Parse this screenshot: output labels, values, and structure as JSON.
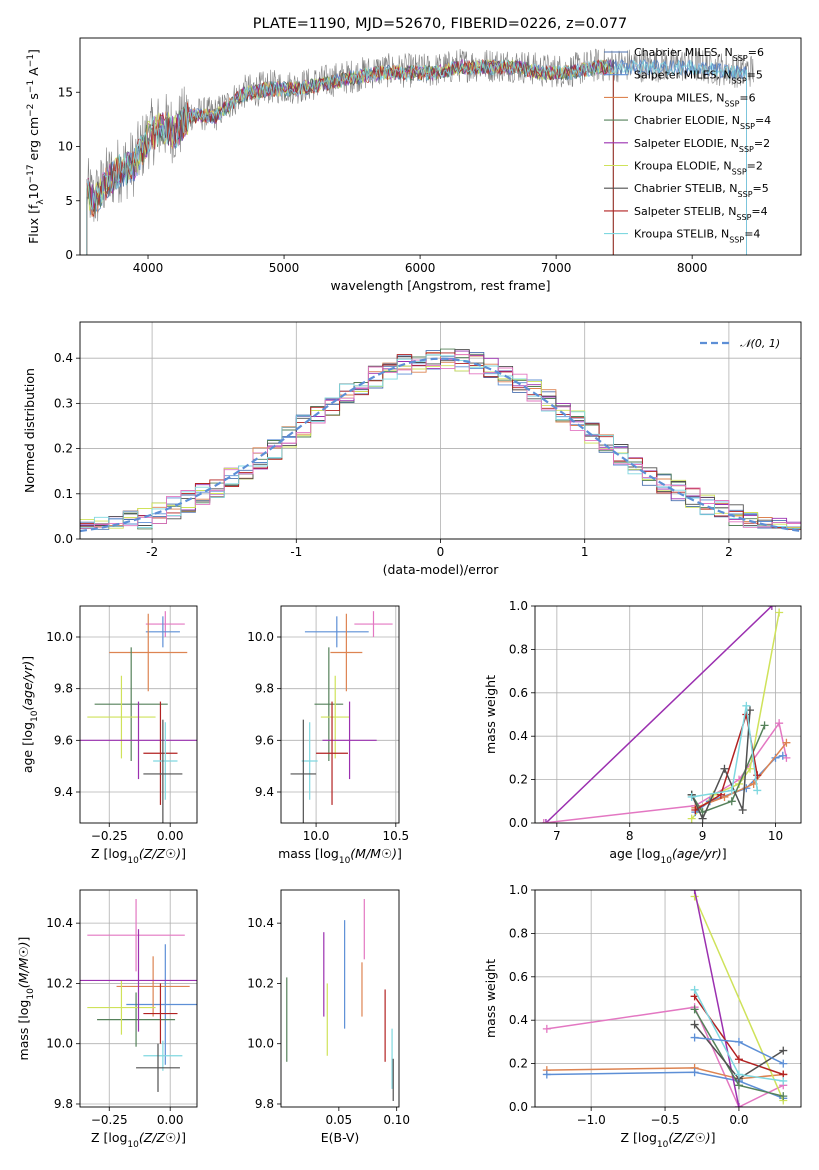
{
  "figure": {
    "title": "PLATE=1190, MJD=52670, FIBERID=0226, z=0.077"
  },
  "colors": {
    "axis": "#000000",
    "grid": "#b0b0b0"
  },
  "chart_data": [
    {
      "id": "spectrum",
      "type": "line",
      "title": "PLATE=1190, MJD=52670, FIBERID=0226, z=0.077",
      "xlabel": "wavelength [Angstrom, rest frame]",
      "ylabel": "Flux [f_λ 10^-17 erg cm^-2 s^-1 A^-1]",
      "xlim": [
        3500,
        8800
      ],
      "ylim": [
        0,
        20
      ],
      "xticks": [
        4000,
        5000,
        6000,
        7000,
        8000
      ],
      "yticks": [
        0,
        5,
        10,
        15
      ],
      "grid": false,
      "legend_position": "upper-right",
      "data_color": "#808080",
      "data_x": [
        3550,
        3600,
        3700,
        3800,
        3900,
        4000,
        4100,
        4200,
        4300,
        4500,
        4700,
        4900,
        5100,
        5300,
        5500,
        5700,
        5900,
        6100,
        6300,
        6500,
        6700,
        6900,
        7100,
        7300,
        7500,
        7700,
        8000,
        8300,
        8450
      ],
      "data_y": [
        6,
        5,
        7,
        8,
        8.5,
        11,
        12,
        11.5,
        13,
        13,
        15,
        15.5,
        15.5,
        16,
        16.5,
        17,
        17,
        17,
        17.5,
        17.5,
        17.5,
        17,
        17,
        17.5,
        17.5,
        17.5,
        17.5,
        17,
        17
      ],
      "series": [
        {
          "name": "Chabrier MILES, N_SSP=6",
          "name_main": "Chabrier MILES, N",
          "name_sub": "SSP",
          "name_suffix": "=6",
          "color": "#4c72b0",
          "xrange": [
            3550,
            8400
          ]
        },
        {
          "name": "Salpeter MILES, N_SSP=5",
          "name_main": "Salpeter MILES, N",
          "name_sub": "SSP",
          "name_suffix": "=5",
          "color": "#5d8fd6",
          "xrange": [
            3550,
            8400
          ]
        },
        {
          "name": "Kroupa MILES, N_SSP=6",
          "name_main": "Kroupa MILES, N",
          "name_sub": "SSP",
          "name_suffix": "=6",
          "color": "#dd8452",
          "xrange": [
            3550,
            7420
          ]
        },
        {
          "name": "Chabrier ELODIE, N_SSP=4",
          "name_main": "Chabrier ELODIE, N",
          "name_sub": "SSP",
          "name_suffix": "=4",
          "color": "#55815a",
          "xrange": [
            3550,
            7420
          ]
        },
        {
          "name": "Salpeter ELODIE, N_SSP=2",
          "name_main": "Salpeter ELODIE, N",
          "name_sub": "SSP",
          "name_suffix": "=2",
          "color": "#9b30b0",
          "xrange": [
            3550,
            7420
          ]
        },
        {
          "name": "Kroupa ELODIE, N_SSP=2",
          "name_main": "Kroupa ELODIE, N",
          "name_sub": "SSP",
          "name_suffix": "=2",
          "color": "#cfe25a",
          "xrange": [
            3550,
            7420
          ]
        },
        {
          "name": "Chabrier STELIB, N_SSP=5",
          "name_main": "Chabrier STELIB, N",
          "name_sub": "SSP",
          "name_suffix": "=5",
          "color": "#505050",
          "xrange": [
            3550,
            7420
          ]
        },
        {
          "name": "Salpeter STELIB, N_SSP=4",
          "name_main": "Salpeter STELIB, N",
          "name_sub": "SSP",
          "name_suffix": "=4",
          "color": "#b22222",
          "xrange": [
            3550,
            7420
          ]
        },
        {
          "name": "Kroupa STELIB, N_SSP=4",
          "name_main": "Kroupa STELIB, N",
          "name_sub": "SSP",
          "name_suffix": "=4",
          "color": "#7fd8e0",
          "xrange": [
            3550,
            8400
          ]
        }
      ]
    },
    {
      "id": "residuals",
      "type": "step",
      "xlabel": "(data-model)/error",
      "ylabel": "Normed distribution",
      "xlim": [
        -2.5,
        2.5
      ],
      "ylim": [
        0,
        0.48
      ],
      "xticks": [
        -2,
        -1,
        0,
        1,
        2
      ],
      "yticks": [
        0.0,
        0.1,
        0.2,
        0.3,
        0.4
      ],
      "grid": true,
      "bin_width": 0.1,
      "legend_position": "upper-right",
      "reference_curve": {
        "name": "𝒩(0, 1)",
        "mean": 0,
        "sigma": 1,
        "color": "#5d8fd6",
        "style": "dashed"
      },
      "series_colors": [
        "#4c72b0",
        "#5d8fd6",
        "#dd8452",
        "#55815a",
        "#9b30b0",
        "#cfe25a",
        "#505050",
        "#b22222",
        "#7fd8e0",
        "#e377c2"
      ]
    },
    {
      "id": "age_vs_Z",
      "type": "errorbar",
      "xlabel": "Z [log10(Z/Z☉)]",
      "ylabel": "age [log10(age/yr)]",
      "xlim": [
        -0.37,
        0.11
      ],
      "ylim": [
        9.28,
        10.12
      ],
      "xticks": [
        -0.25,
        0.0
      ],
      "xticklabels": [
        "−0.25",
        "0.00"
      ],
      "yticks": [
        9.4,
        9.6,
        9.8,
        10.0
      ],
      "grid": true,
      "points": [
        {
          "x": -0.02,
          "xerr": 0.08,
          "y": 10.05,
          "yerr": 0.05,
          "color": "#e377c2"
        },
        {
          "x": -0.03,
          "xerr": 0.07,
          "y": 10.02,
          "yerr": 0.06,
          "color": "#5d8fd6"
        },
        {
          "x": -0.09,
          "xerr": 0.16,
          "y": 9.94,
          "yerr": 0.15,
          "color": "#dd8452"
        },
        {
          "x": -0.16,
          "xerr": 0.15,
          "y": 9.74,
          "yerr": 0.22,
          "color": "#55815a"
        },
        {
          "x": -0.2,
          "xerr": 0.14,
          "y": 9.69,
          "yerr": 0.16,
          "color": "#cfe25a"
        },
        {
          "x": -0.13,
          "xerr": 0.46,
          "y": 9.6,
          "yerr": 0.15,
          "color": "#9b30b0"
        },
        {
          "x": -0.04,
          "xerr": 0.07,
          "y": 9.55,
          "yerr": 0.2,
          "color": "#b22222"
        },
        {
          "x": -0.02,
          "xerr": 0.05,
          "y": 9.52,
          "yerr": 0.15,
          "color": "#7fd8e0"
        },
        {
          "x": -0.03,
          "xerr": 0.08,
          "y": 9.47,
          "yerr": 0.21,
          "color": "#505050"
        }
      ]
    },
    {
      "id": "age_vs_mass",
      "type": "errorbar",
      "xlabel": "mass [log10(M/M☉)]",
      "ylabel": "",
      "xlim": [
        9.78,
        10.52
      ],
      "ylim": [
        9.28,
        10.12
      ],
      "xticks": [
        10.0,
        10.5
      ],
      "xticklabels": [
        "10.0",
        "10.5"
      ],
      "yticks": [
        9.4,
        9.6,
        9.8,
        10.0
      ],
      "grid": true,
      "points": [
        {
          "x": 10.36,
          "xerr": 0.12,
          "y": 10.05,
          "yerr": 0.05,
          "color": "#e377c2"
        },
        {
          "x": 10.13,
          "xerr": 0.2,
          "y": 10.02,
          "yerr": 0.06,
          "color": "#5d8fd6"
        },
        {
          "x": 10.19,
          "xerr": 0.1,
          "y": 9.94,
          "yerr": 0.15,
          "color": "#dd8452"
        },
        {
          "x": 10.08,
          "xerr": 0.09,
          "y": 9.74,
          "yerr": 0.22,
          "color": "#55815a"
        },
        {
          "x": 10.12,
          "xerr": 0.09,
          "y": 9.69,
          "yerr": 0.16,
          "color": "#cfe25a"
        },
        {
          "x": 10.21,
          "xerr": 0.17,
          "y": 9.6,
          "yerr": 0.15,
          "color": "#9b30b0"
        },
        {
          "x": 10.1,
          "xerr": 0.1,
          "y": 9.55,
          "yerr": 0.2,
          "color": "#b22222"
        },
        {
          "x": 9.96,
          "xerr": 0.05,
          "y": 9.52,
          "yerr": 0.15,
          "color": "#7fd8e0"
        },
        {
          "x": 9.92,
          "xerr": 0.08,
          "y": 9.47,
          "yerr": 0.21,
          "color": "#505050"
        }
      ]
    },
    {
      "id": "mw_vs_age",
      "type": "line",
      "xlabel": "age [log10(age/yr)]",
      "ylabel": "mass weight",
      "xlim": [
        6.7,
        10.35
      ],
      "ylim": [
        0,
        1
      ],
      "xticks": [
        7,
        8,
        9,
        10
      ],
      "yticks": [
        0.0,
        0.2,
        0.4,
        0.6,
        0.8,
        1.0
      ],
      "grid": true,
      "series": [
        {
          "color": "#9b30b0",
          "points": [
            [
              6.85,
              0.0
            ],
            [
              9.95,
              1.0
            ]
          ]
        },
        {
          "color": "#e377c2",
          "points": [
            [
              6.82,
              0.0
            ],
            [
              8.9,
              0.08
            ],
            [
              9.5,
              0.2
            ],
            [
              10.05,
              0.46
            ],
            [
              10.15,
              0.3
            ]
          ]
        },
        {
          "color": "#cfe25a",
          "points": [
            [
              8.85,
              0.02
            ],
            [
              9.15,
              0.13
            ],
            [
              9.5,
              0.18
            ],
            [
              9.65,
              0.25
            ],
            [
              10.05,
              0.97
            ]
          ]
        },
        {
          "color": "#5d8fd6",
          "points": [
            [
              8.9,
              0.05
            ],
            [
              9.1,
              0.1
            ],
            [
              9.6,
              0.16
            ],
            [
              10.0,
              0.3
            ],
            [
              10.1,
              0.31
            ]
          ]
        },
        {
          "color": "#dd8452",
          "points": [
            [
              8.9,
              0.07
            ],
            [
              9.3,
              0.12
            ],
            [
              9.7,
              0.18
            ],
            [
              10.15,
              0.37
            ]
          ]
        },
        {
          "color": "#55815a",
          "points": [
            [
              8.85,
              0.13
            ],
            [
              9.0,
              0.05
            ],
            [
              9.4,
              0.1
            ],
            [
              9.85,
              0.45
            ]
          ]
        },
        {
          "color": "#b22222",
          "points": [
            [
              8.9,
              0.06
            ],
            [
              9.25,
              0.13
            ],
            [
              9.6,
              0.5
            ],
            [
              9.75,
              0.22
            ]
          ]
        },
        {
          "color": "#505050",
          "points": [
            [
              8.85,
              0.13
            ],
            [
              9.0,
              0.02
            ],
            [
              9.3,
              0.25
            ],
            [
              9.55,
              0.06
            ],
            [
              9.65,
              0.52
            ]
          ]
        },
        {
          "color": "#7fd8e0",
          "points": [
            [
              8.85,
              0.12
            ],
            [
              9.4,
              0.15
            ],
            [
              9.6,
              0.54
            ],
            [
              9.75,
              0.15
            ]
          ]
        }
      ]
    },
    {
      "id": "mass_vs_Z",
      "type": "errorbar",
      "xlabel": "Z [log10(Z/Z☉)]",
      "ylabel": "mass [log10(M/M☉)]",
      "xlim": [
        -0.37,
        0.11
      ],
      "ylim": [
        9.79,
        10.51
      ],
      "xticks": [
        -0.25,
        0.0
      ],
      "xticklabels": [
        "−0.25",
        "0.00"
      ],
      "yticks": [
        9.8,
        10.0,
        10.2,
        10.4
      ],
      "grid": true,
      "points": [
        {
          "x": -0.14,
          "xerr": 0.2,
          "y": 10.36,
          "yerr": 0.12,
          "color": "#e377c2"
        },
        {
          "x": -0.02,
          "xerr": 0.16,
          "y": 10.13,
          "yerr": 0.2,
          "color": "#5d8fd6"
        },
        {
          "x": -0.07,
          "xerr": 0.15,
          "y": 10.19,
          "yerr": 0.1,
          "color": "#dd8452"
        },
        {
          "x": -0.14,
          "xerr": 0.16,
          "y": 10.08,
          "yerr": 0.09,
          "color": "#55815a"
        },
        {
          "x": -0.2,
          "xerr": 0.14,
          "y": 10.12,
          "yerr": 0.09,
          "color": "#cfe25a"
        },
        {
          "x": -0.13,
          "xerr": 0.46,
          "y": 10.21,
          "yerr": 0.17,
          "color": "#9b30b0"
        },
        {
          "x": -0.04,
          "xerr": 0.07,
          "y": 10.1,
          "yerr": 0.1,
          "color": "#b22222"
        },
        {
          "x": -0.03,
          "xerr": 0.08,
          "y": 9.96,
          "yerr": 0.05,
          "color": "#7fd8e0"
        },
        {
          "x": -0.05,
          "xerr": 0.09,
          "y": 9.92,
          "yerr": 0.08,
          "color": "#505050"
        }
      ]
    },
    {
      "id": "mass_vs_ebv",
      "type": "errorbar",
      "xlabel": "E(B-V)",
      "ylabel": "",
      "xlim": [
        0.0,
        0.102
      ],
      "ylim": [
        9.79,
        10.51
      ],
      "xticks": [
        0.05,
        0.1
      ],
      "xticklabels": [
        "0.05",
        "0.10"
      ],
      "yticks": [
        9.8,
        10.0,
        10.2,
        10.4
      ],
      "grid": false,
      "points": [
        {
          "x": 0.005,
          "xerr": 0,
          "y": 10.08,
          "yerr": 0.14,
          "color": "#55815a"
        },
        {
          "x": 0.037,
          "xerr": 0,
          "y": 10.23,
          "yerr": 0.14,
          "color": "#9b30b0"
        },
        {
          "x": 0.04,
          "xerr": 0,
          "y": 10.08,
          "yerr": 0.12,
          "color": "#cfe25a"
        },
        {
          "x": 0.055,
          "xerr": 0,
          "y": 10.23,
          "yerr": 0.18,
          "color": "#5d8fd6"
        },
        {
          "x": 0.07,
          "xerr": 0,
          "y": 10.18,
          "yerr": 0.09,
          "color": "#dd8452"
        },
        {
          "x": 0.072,
          "xerr": 0,
          "y": 10.38,
          "yerr": 0.1,
          "color": "#e377c2"
        },
        {
          "x": 0.09,
          "xerr": 0,
          "y": 10.06,
          "yerr": 0.12,
          "color": "#b22222"
        },
        {
          "x": 0.096,
          "xerr": 0,
          "y": 9.95,
          "yerr": 0.1,
          "color": "#7fd8e0"
        },
        {
          "x": 0.097,
          "xerr": 0,
          "y": 9.88,
          "yerr": 0.07,
          "color": "#505050"
        }
      ]
    },
    {
      "id": "mw_vs_Z",
      "type": "line",
      "xlabel": "Z [log10(Z/Z☉)]",
      "ylabel": "mass weight",
      "xlim": [
        -1.38,
        0.42
      ],
      "ylim": [
        0,
        1
      ],
      "xticks": [
        -1.0,
        -0.5,
        0.0
      ],
      "xticklabels": [
        "−1.0",
        "−0.5",
        "0.0"
      ],
      "yticks": [
        0.0,
        0.2,
        0.4,
        0.6,
        0.8,
        1.0
      ],
      "grid": true,
      "series": [
        {
          "color": "#e377c2",
          "points": [
            [
              -1.3,
              0.36
            ],
            [
              -0.3,
              0.46
            ],
            [
              0.0,
              0.0
            ],
            [
              0.3,
              0.1
            ]
          ]
        },
        {
          "color": "#dd8452",
          "points": [
            [
              -1.3,
              0.17
            ],
            [
              -0.3,
              0.18
            ],
            [
              0.0,
              0.13
            ],
            [
              0.3,
              0.15
            ]
          ]
        },
        {
          "color": "#5d8fd6",
          "points": [
            [
              -1.3,
              0.15
            ],
            [
              -0.3,
              0.16
            ],
            [
              0.0,
              0.12
            ],
            [
              0.3,
              0.04
            ]
          ]
        },
        {
          "color": "#cfe25a",
          "points": [
            [
              -0.3,
              0.97
            ],
            [
              0.3,
              0.03
            ]
          ]
        },
        {
          "color": "#9b30b0",
          "points": [
            [
              -0.3,
              1.0
            ],
            [
              0.0,
              0.0
            ]
          ]
        },
        {
          "color": "#55815a",
          "points": [
            [
              -0.3,
              0.45
            ],
            [
              0.0,
              0.1
            ],
            [
              0.3,
              0.05
            ]
          ]
        },
        {
          "color": "#b22222",
          "points": [
            [
              -0.3,
              0.51
            ],
            [
              0.0,
              0.22
            ],
            [
              0.3,
              0.15
            ]
          ]
        },
        {
          "color": "#505050",
          "points": [
            [
              -0.3,
              0.38
            ],
            [
              0.0,
              0.13
            ],
            [
              0.3,
              0.26
            ]
          ]
        },
        {
          "color": "#7fd8e0",
          "points": [
            [
              -0.3,
              0.54
            ],
            [
              0.0,
              0.15
            ],
            [
              0.3,
              0.12
            ]
          ]
        },
        {
          "color": "#5d8fd6",
          "points": [
            [
              -0.3,
              0.32
            ],
            [
              0.0,
              0.3
            ],
            [
              0.3,
              0.2
            ]
          ]
        }
      ]
    }
  ]
}
